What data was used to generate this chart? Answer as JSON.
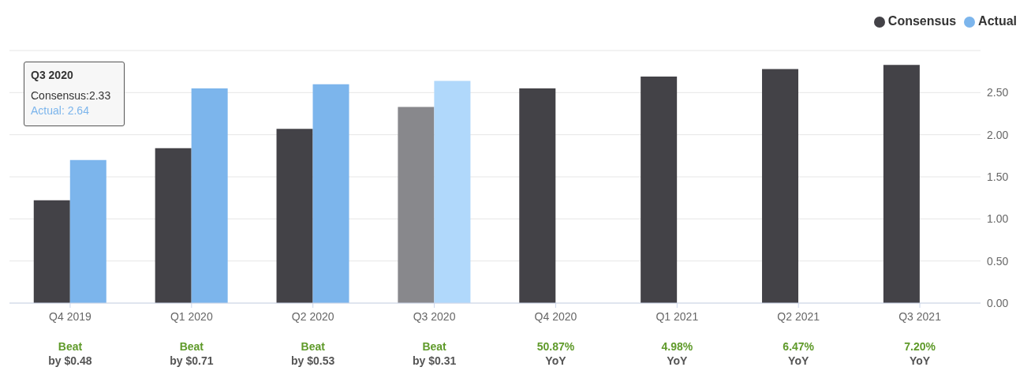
{
  "chart_data": {
    "type": "bar",
    "categories": [
      "Q4 2019",
      "Q1 2020",
      "Q2 2020",
      "Q3 2020",
      "Q4 2020",
      "Q1 2021",
      "Q2 2021",
      "Q3 2021"
    ],
    "series": [
      {
        "name": "Consensus",
        "color": "#434247",
        "colors": [
          "#434247",
          "#434247",
          "#434247",
          "#88888c",
          "#434247",
          "#434247",
          "#434247",
          "#434247"
        ],
        "values": [
          1.22,
          1.84,
          2.07,
          2.33,
          2.55,
          2.69,
          2.78,
          2.83
        ]
      },
      {
        "name": "Actual",
        "color": "#7cb5ec",
        "colors": [
          "#7cb5ec",
          "#7cb5ec",
          "#7cb5ec",
          "#b0d8fb",
          null,
          null,
          null,
          null
        ],
        "values": [
          1.7,
          2.55,
          2.6,
          2.64,
          null,
          null,
          null,
          null
        ]
      }
    ],
    "ylim": [
      0,
      3
    ],
    "yticks": [
      {
        "value": 0,
        "label": "0.00"
      },
      {
        "value": 0.5,
        "label": "0.50"
      },
      {
        "value": 1,
        "label": "1.00"
      },
      {
        "value": 1.5,
        "label": "1.50"
      },
      {
        "value": 2,
        "label": "2.00"
      },
      {
        "value": 2.5,
        "label": "2.50"
      },
      {
        "value": 3,
        "label": null
      }
    ],
    "grid": "y",
    "legend": "top right",
    "annotations": [
      "Beat",
      "by $0.48",
      "Beat",
      "by $0.71",
      "Beat",
      "by $0.53",
      "Beat",
      "by $0.31",
      "50.87%",
      "YoY",
      "4.98%",
      "YoY",
      "6.47%",
      "YoY",
      "7.20%",
      "YoY",
      "Q3 2020",
      "Consensus:2.33",
      "Actual: 2.64"
    ]
  }
}
